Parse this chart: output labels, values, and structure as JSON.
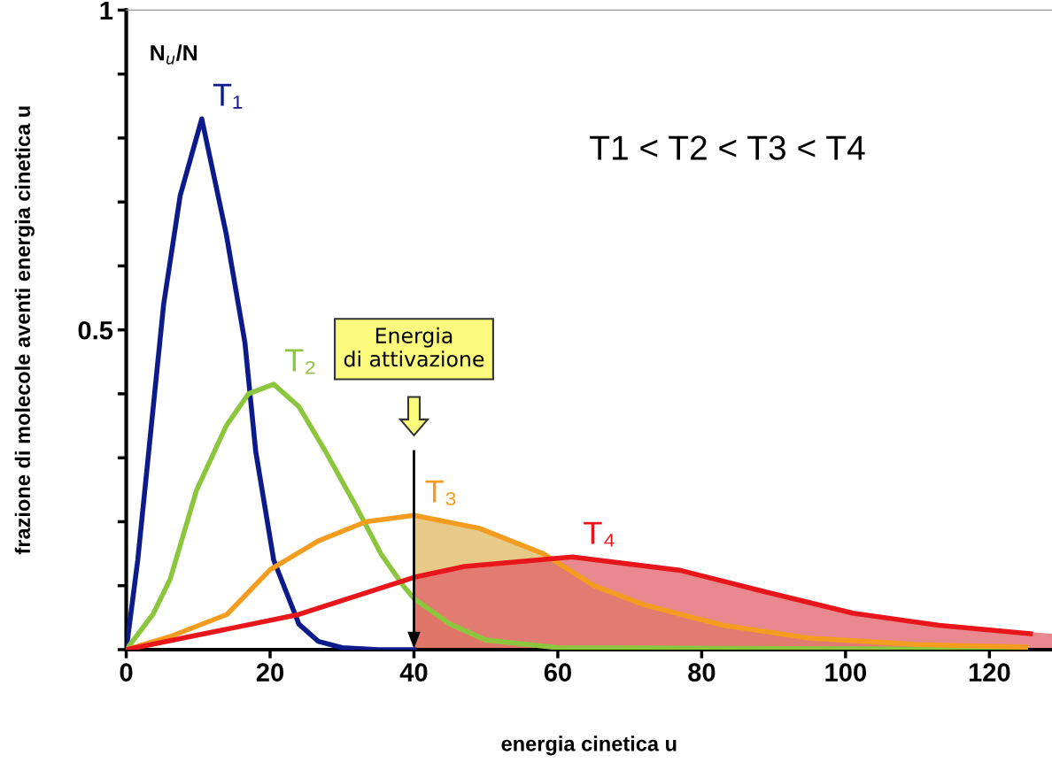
{
  "chart_data": {
    "type": "line",
    "xlabel": "energia cinetica u",
    "ylabel": "frazione di molecole aventi energia cinetica u",
    "annotations": [
      "N$_{u}$/N",
      "T1 < T2 < T3 < T4"
    ],
    "xlim": [
      0,
      128.7
    ],
    "ylim": [
      0,
      1
    ],
    "xticks": [
      0,
      20,
      40,
      60,
      80,
      100,
      120
    ],
    "yticks": [
      {
        "value": 0,
        "label": null
      },
      {
        "value": 0.1,
        "label": null
      },
      {
        "value": 0.2,
        "label": null
      },
      {
        "value": 0.3,
        "label": null
      },
      {
        "value": 0.4,
        "label": null
      },
      0.5,
      {
        "value": 0.6,
        "label": null
      },
      {
        "value": 0.7,
        "label": null
      },
      {
        "value": 0.8,
        "label": null
      },
      {
        "value": 0.9,
        "label": null
      },
      1
    ],
    "grid": false,
    "ref_lines": [
      {
        "axis": "x",
        "value": 40,
        "label": "Energia\ndi attivazione",
        "color": "#000000"
      }
    ],
    "series": [
      {
        "name": "T₁",
        "color": "#0d1a8a",
        "x": [
          0,
          1.6,
          5.2,
          7.5,
          10.5,
          13.9,
          16.5,
          18,
          20.5,
          24,
          26.7,
          30,
          35,
          40
        ],
        "values": [
          0,
          0.14,
          0.54,
          0.71,
          0.83,
          0.65,
          0.48,
          0.31,
          0.14,
          0.04,
          0.013,
          0.003,
          0,
          0
        ]
      },
      {
        "name": "T₂",
        "color": "#8cc63f",
        "x": [
          0,
          3.7,
          6.1,
          9.8,
          13.9,
          17,
          20.5,
          24,
          27.7,
          31.9,
          35.4,
          38.5,
          40,
          45,
          50,
          60,
          125
        ],
        "values": [
          0,
          0.055,
          0.11,
          0.25,
          0.35,
          0.4,
          0.415,
          0.38,
          0.31,
          0.225,
          0.15,
          0.1,
          0.08,
          0.04,
          0.015,
          0.003,
          0
        ]
      },
      {
        "name": "T₃",
        "color": "#f39c1f",
        "x": [
          0,
          6,
          14,
          20,
          26.7,
          33.3,
          40,
          49,
          58,
          65,
          72,
          83,
          95,
          110,
          125
        ],
        "values": [
          0,
          0.02,
          0.055,
          0.125,
          0.17,
          0.2,
          0.21,
          0.19,
          0.15,
          0.1,
          0.07,
          0.038,
          0.018,
          0.008,
          0.004
        ]
      },
      {
        "name": "T₄",
        "color": "#e8161b",
        "x": [
          0,
          8.7,
          24,
          40,
          47,
          62,
          77,
          89,
          101,
          113,
          125.7
        ],
        "values": [
          0,
          0.02,
          0.055,
          0.113,
          0.13,
          0.145,
          0.124,
          0.09,
          0.057,
          0.038,
          0.025
        ]
      },
      {
        "type": "area",
        "color": "#b89a40",
        "x": [
          40,
          45,
          50,
          60,
          125
        ],
        "values": [
          0.08,
          0.04,
          0.015,
          0.003,
          0
        ]
      },
      {
        "type": "area",
        "color": "#e0b860",
        "x": [
          40,
          49,
          58,
          65,
          72,
          83,
          95,
          110,
          125
        ],
        "values": [
          0.21,
          0.19,
          0.15,
          0.1,
          0.07,
          0.038,
          0.018,
          0.008,
          0.004
        ]
      },
      {
        "type": "area",
        "color": "#e0606a",
        "x": [
          40,
          47,
          62,
          77,
          89,
          101,
          113,
          128.7
        ],
        "values": [
          0.113,
          0.13,
          0.145,
          0.124,
          0.09,
          0.057,
          0.038,
          0.025
        ]
      }
    ]
  }
}
